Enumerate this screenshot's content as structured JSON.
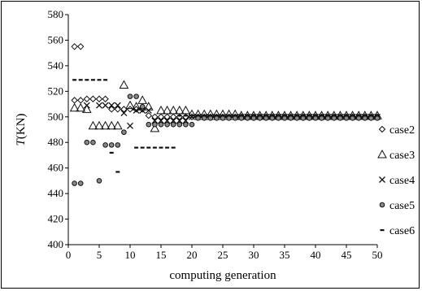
{
  "chart_data": {
    "type": "scatter",
    "xlabel": "computing generation",
    "ylabel": "T(KN)",
    "xlim": [
      0,
      50
    ],
    "ylim": [
      400,
      580
    ],
    "xticks": [
      "0",
      "5",
      "10",
      "15",
      "20",
      "25",
      "30",
      "35",
      "40",
      "45",
      "50"
    ],
    "yticks": [
      "400",
      "420",
      "440",
      "460",
      "480",
      "500",
      "520",
      "540",
      "560",
      "580"
    ],
    "grid": false,
    "legend_position": "right",
    "series": [
      {
        "name": "case2",
        "marker": "diamond",
        "points": [
          [
            1,
            555
          ],
          [
            2,
            555
          ],
          [
            1,
            513
          ],
          [
            2,
            513
          ],
          [
            3,
            514
          ],
          [
            4,
            514
          ],
          [
            5,
            514
          ],
          [
            6,
            514
          ],
          [
            7,
            506
          ],
          [
            8,
            506
          ],
          [
            9,
            506
          ],
          [
            10,
            506
          ],
          [
            11,
            506
          ],
          [
            12,
            506
          ],
          [
            13,
            501
          ],
          [
            14,
            500
          ],
          [
            15,
            500
          ],
          [
            16,
            500
          ],
          [
            17,
            500
          ],
          [
            18,
            500
          ],
          [
            19,
            500
          ],
          [
            20,
            500
          ],
          [
            21,
            500
          ],
          [
            22,
            500
          ],
          [
            23,
            500
          ],
          [
            24,
            500
          ],
          [
            25,
            500
          ],
          [
            26,
            500
          ],
          [
            27,
            500
          ],
          [
            28,
            500
          ],
          [
            29,
            500
          ],
          [
            30,
            500
          ],
          [
            31,
            500
          ],
          [
            32,
            500
          ],
          [
            33,
            500
          ],
          [
            34,
            500
          ],
          [
            35,
            500
          ],
          [
            36,
            500
          ],
          [
            37,
            500
          ],
          [
            38,
            500
          ],
          [
            39,
            500
          ],
          [
            40,
            500
          ],
          [
            41,
            500
          ],
          [
            42,
            500
          ],
          [
            43,
            500
          ],
          [
            44,
            500
          ],
          [
            45,
            500
          ],
          [
            46,
            500
          ],
          [
            47,
            500
          ],
          [
            48,
            500
          ],
          [
            49,
            500
          ],
          [
            50,
            500
          ]
        ]
      },
      {
        "name": "case3",
        "marker": "triangle",
        "points": [
          [
            1,
            507
          ],
          [
            2,
            507
          ],
          [
            3,
            506
          ],
          [
            4,
            493
          ],
          [
            5,
            493
          ],
          [
            6,
            493
          ],
          [
            7,
            493
          ],
          [
            8,
            493
          ],
          [
            9,
            525
          ],
          [
            10,
            509
          ],
          [
            11,
            508
          ],
          [
            12,
            513
          ],
          [
            13,
            508
          ],
          [
            14,
            491
          ],
          [
            15,
            505
          ],
          [
            16,
            505
          ],
          [
            17,
            505
          ],
          [
            18,
            505
          ],
          [
            19,
            505
          ],
          [
            20,
            502
          ],
          [
            21,
            502
          ],
          [
            22,
            502
          ],
          [
            23,
            502
          ],
          [
            24,
            502
          ],
          [
            25,
            502
          ],
          [
            26,
            502
          ],
          [
            27,
            502
          ],
          [
            28,
            501
          ],
          [
            29,
            501
          ],
          [
            30,
            501
          ],
          [
            31,
            501
          ],
          [
            32,
            501
          ],
          [
            33,
            501
          ],
          [
            34,
            501
          ],
          [
            35,
            501
          ],
          [
            36,
            501
          ],
          [
            37,
            501
          ],
          [
            38,
            501
          ],
          [
            39,
            501
          ],
          [
            40,
            501
          ],
          [
            41,
            501
          ],
          [
            42,
            501
          ],
          [
            43,
            501
          ],
          [
            44,
            501
          ],
          [
            45,
            501
          ],
          [
            46,
            501
          ],
          [
            47,
            501
          ],
          [
            48,
            501
          ],
          [
            49,
            501
          ],
          [
            50,
            501
          ]
        ]
      },
      {
        "name": "case4",
        "marker": "x",
        "points": [
          [
            3,
            509
          ],
          [
            5,
            509
          ],
          [
            6,
            509
          ],
          [
            7,
            509
          ],
          [
            8,
            509
          ],
          [
            9,
            503
          ],
          [
            10,
            493
          ],
          [
            11,
            505
          ],
          [
            12,
            505
          ],
          [
            13,
            505
          ],
          [
            14,
            497
          ],
          [
            15,
            497
          ],
          [
            16,
            497
          ],
          [
            17,
            497
          ],
          [
            18,
            497
          ],
          [
            19,
            497
          ],
          [
            20,
            500
          ],
          [
            21,
            500
          ],
          [
            22,
            500
          ],
          [
            23,
            500
          ],
          [
            24,
            500
          ],
          [
            25,
            500
          ],
          [
            26,
            500
          ],
          [
            27,
            500
          ],
          [
            28,
            500
          ],
          [
            29,
            500
          ],
          [
            30,
            500
          ],
          [
            31,
            500
          ],
          [
            32,
            500
          ],
          [
            33,
            500
          ],
          [
            34,
            500
          ],
          [
            35,
            500
          ],
          [
            36,
            500
          ],
          [
            37,
            500
          ],
          [
            38,
            500
          ],
          [
            39,
            500
          ],
          [
            40,
            500
          ],
          [
            41,
            500
          ],
          [
            42,
            500
          ],
          [
            43,
            500
          ],
          [
            44,
            500
          ],
          [
            45,
            500
          ],
          [
            46,
            500
          ],
          [
            47,
            500
          ],
          [
            48,
            500
          ],
          [
            49,
            500
          ],
          [
            50,
            500
          ]
        ]
      },
      {
        "name": "case5",
        "marker": "circle",
        "points": [
          [
            1,
            448
          ],
          [
            2,
            448
          ],
          [
            3,
            480
          ],
          [
            4,
            480
          ],
          [
            5,
            450
          ],
          [
            6,
            478
          ],
          [
            7,
            478
          ],
          [
            8,
            478
          ],
          [
            9,
            488
          ],
          [
            10,
            516
          ],
          [
            11,
            516
          ],
          [
            12,
            508
          ],
          [
            13,
            494
          ],
          [
            14,
            494
          ],
          [
            15,
            494
          ],
          [
            16,
            494
          ],
          [
            17,
            494
          ],
          [
            18,
            494
          ],
          [
            19,
            494
          ],
          [
            20,
            494
          ],
          [
            21,
            499
          ],
          [
            22,
            499
          ],
          [
            23,
            499
          ],
          [
            24,
            499
          ],
          [
            25,
            499
          ],
          [
            26,
            499
          ],
          [
            27,
            499
          ],
          [
            28,
            499
          ],
          [
            29,
            499
          ],
          [
            30,
            499
          ],
          [
            31,
            499
          ],
          [
            32,
            499
          ],
          [
            33,
            499
          ],
          [
            34,
            499
          ],
          [
            35,
            499
          ],
          [
            36,
            499
          ],
          [
            37,
            499
          ],
          [
            38,
            499
          ],
          [
            39,
            499
          ],
          [
            40,
            499
          ],
          [
            41,
            499
          ],
          [
            42,
            499
          ],
          [
            43,
            499
          ],
          [
            44,
            499
          ],
          [
            45,
            499
          ],
          [
            46,
            499
          ],
          [
            47,
            499
          ],
          [
            48,
            499
          ],
          [
            49,
            499
          ],
          [
            50,
            499
          ]
        ]
      },
      {
        "name": "case6",
        "marker": "dash",
        "points": [
          [
            1,
            529
          ],
          [
            2,
            529
          ],
          [
            3,
            529
          ],
          [
            4,
            529
          ],
          [
            5,
            529
          ],
          [
            6,
            529
          ],
          [
            7,
            472
          ],
          [
            8,
            457
          ],
          [
            11,
            476
          ],
          [
            12,
            476
          ],
          [
            13,
            476
          ],
          [
            14,
            476
          ],
          [
            15,
            476
          ],
          [
            16,
            476
          ],
          [
            17,
            476
          ],
          [
            18,
            501
          ],
          [
            19,
            501
          ],
          [
            20,
            501
          ],
          [
            21,
            501
          ],
          [
            22,
            501
          ],
          [
            23,
            501
          ],
          [
            24,
            501
          ],
          [
            25,
            501
          ],
          [
            26,
            501
          ],
          [
            27,
            501
          ],
          [
            28,
            501
          ],
          [
            29,
            501
          ],
          [
            30,
            501
          ],
          [
            31,
            501
          ],
          [
            32,
            501
          ],
          [
            33,
            501
          ],
          [
            34,
            501
          ],
          [
            35,
            501
          ],
          [
            36,
            501
          ],
          [
            37,
            501
          ],
          [
            38,
            501
          ],
          [
            39,
            501
          ],
          [
            40,
            501
          ],
          [
            41,
            501
          ],
          [
            42,
            501
          ],
          [
            43,
            501
          ],
          [
            44,
            501
          ],
          [
            45,
            501
          ],
          [
            46,
            501
          ],
          [
            47,
            501
          ],
          [
            48,
            501
          ],
          [
            49,
            501
          ],
          [
            50,
            501
          ]
        ]
      }
    ]
  }
}
